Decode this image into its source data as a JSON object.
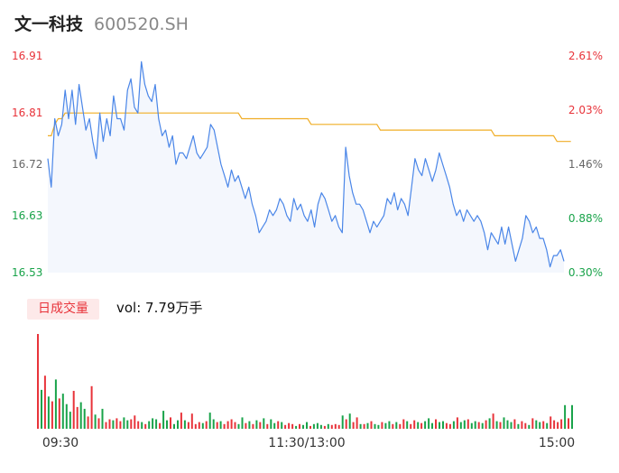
{
  "header": {
    "name": "文一科技",
    "code": "600520.SH"
  },
  "volume": {
    "badge": "日成交量",
    "label": "vol: 7.79万手"
  },
  "colors": {
    "up": "#e8333a",
    "down": "#19a34a",
    "price_line": "#4a86e8",
    "avg_line": "#f0ad25",
    "area": "#f4f7fd"
  },
  "chart_data": [
    {
      "type": "line",
      "title": "",
      "y_labels_left": [
        "16.91",
        "16.81",
        "16.72",
        "16.63",
        "16.53"
      ],
      "y_labels_right": [
        "2.61%",
        "2.03%",
        "1.46%",
        "0.88%",
        "0.30%"
      ],
      "x_labels": [
        "09:30",
        "11:30/13:00",
        "15:00"
      ],
      "ylim": [
        16.53,
        16.91
      ],
      "series": [
        {
          "key": "price",
          "values": [
            16.73,
            16.68,
            16.8,
            16.77,
            16.79,
            16.85,
            16.8,
            16.85,
            16.79,
            16.86,
            16.82,
            16.78,
            16.8,
            16.76,
            16.73,
            16.81,
            16.76,
            16.8,
            16.77,
            16.84,
            16.8,
            16.8,
            16.78,
            16.85,
            16.87,
            16.82,
            16.81,
            16.9,
            16.86,
            16.84,
            16.83,
            16.86,
            16.8,
            16.77,
            16.78,
            16.75,
            16.77,
            16.72,
            16.74,
            16.74,
            16.73,
            16.75,
            16.77,
            16.74,
            16.73,
            16.74,
            16.75,
            16.79,
            16.78,
            16.75,
            16.72,
            16.7,
            16.68,
            16.71,
            16.69,
            16.7,
            16.68,
            16.66,
            16.68,
            16.65,
            16.63,
            16.6,
            16.61,
            16.62,
            16.64,
            16.63,
            16.64,
            16.66,
            16.65,
            16.63,
            16.62,
            16.66,
            16.64,
            16.65,
            16.63,
            16.62,
            16.64,
            16.61,
            16.65,
            16.67,
            16.66,
            16.64,
            16.62,
            16.63,
            16.61,
            16.6,
            16.75,
            16.7,
            16.67,
            16.65,
            16.65,
            16.64,
            16.62,
            16.6,
            16.62,
            16.61,
            16.62,
            16.63,
            16.66,
            16.65,
            16.67,
            16.64,
            16.66,
            16.65,
            16.63,
            16.68,
            16.73,
            16.71,
            16.7,
            16.73,
            16.71,
            16.69,
            16.71,
            16.74,
            16.72,
            16.7,
            16.68,
            16.65,
            16.63,
            16.64,
            16.62,
            16.64,
            16.63,
            16.62,
            16.63,
            16.62,
            16.6,
            16.57,
            16.6,
            16.59,
            16.58,
            16.61,
            16.58,
            16.61,
            16.58,
            16.55,
            16.57,
            16.59,
            16.63,
            16.62,
            16.6,
            16.61,
            16.59,
            16.59,
            16.57,
            16.54,
            16.56,
            16.56,
            16.57,
            16.55
          ],
          "color": "#4a86e8"
        },
        {
          "key": "average",
          "values": [
            16.77,
            16.77,
            16.79,
            16.8,
            16.8,
            16.81,
            16.81,
            16.81,
            16.81,
            16.81,
            16.81,
            16.81,
            16.81,
            16.81,
            16.81,
            16.81,
            16.81,
            16.81,
            16.81,
            16.81,
            16.81,
            16.81,
            16.81,
            16.81,
            16.81,
            16.81,
            16.81,
            16.81,
            16.81,
            16.81,
            16.81,
            16.81,
            16.81,
            16.81,
            16.81,
            16.81,
            16.81,
            16.81,
            16.81,
            16.81,
            16.81,
            16.81,
            16.81,
            16.81,
            16.81,
            16.81,
            16.81,
            16.81,
            16.81,
            16.81,
            16.81,
            16.81,
            16.81,
            16.81,
            16.81,
            16.81,
            16.8,
            16.8,
            16.8,
            16.8,
            16.8,
            16.8,
            16.8,
            16.8,
            16.8,
            16.8,
            16.8,
            16.8,
            16.8,
            16.8,
            16.8,
            16.8,
            16.8,
            16.8,
            16.8,
            16.8,
            16.79,
            16.79,
            16.79,
            16.79,
            16.79,
            16.79,
            16.79,
            16.79,
            16.79,
            16.79,
            16.79,
            16.79,
            16.79,
            16.79,
            16.79,
            16.79,
            16.79,
            16.79,
            16.79,
            16.79,
            16.78,
            16.78,
            16.78,
            16.78,
            16.78,
            16.78,
            16.78,
            16.78,
            16.78,
            16.78,
            16.78,
            16.78,
            16.78,
            16.78,
            16.78,
            16.78,
            16.78,
            16.78,
            16.78,
            16.78,
            16.78,
            16.78,
            16.78,
            16.78,
            16.78,
            16.78,
            16.78,
            16.78,
            16.78,
            16.78,
            16.78,
            16.78,
            16.78,
            16.77,
            16.77,
            16.77,
            16.77,
            16.77,
            16.77,
            16.77,
            16.77,
            16.77,
            16.77,
            16.77,
            16.77,
            16.77,
            16.77,
            16.77,
            16.77,
            16.77,
            16.77,
            16.76,
            16.76,
            16.76,
            16.76,
            16.76
          ],
          "color": "#f0ad25"
        }
      ]
    },
    {
      "type": "bar",
      "title": "",
      "ylim": [
        0,
        1
      ],
      "volumes": [
        1.0,
        0.41,
        0.56,
        0.34,
        0.29,
        0.52,
        0.32,
        0.37,
        0.26,
        0.18,
        0.4,
        0.23,
        0.28,
        0.21,
        0.13,
        0.45,
        0.15,
        0.11,
        0.21,
        0.07,
        0.1,
        0.09,
        0.11,
        0.08,
        0.12,
        0.09,
        0.1,
        0.14,
        0.08,
        0.07,
        0.05,
        0.08,
        0.11,
        0.1,
        0.06,
        0.19,
        0.09,
        0.12,
        0.05,
        0.09,
        0.17,
        0.09,
        0.07,
        0.16,
        0.05,
        0.07,
        0.06,
        0.08,
        0.17,
        0.1,
        0.07,
        0.08,
        0.05,
        0.08,
        0.1,
        0.07,
        0.05,
        0.12,
        0.06,
        0.08,
        0.05,
        0.09,
        0.07,
        0.11,
        0.05,
        0.1,
        0.06,
        0.08,
        0.07,
        0.04,
        0.06,
        0.05,
        0.03,
        0.05,
        0.04,
        0.07,
        0.03,
        0.05,
        0.06,
        0.04,
        0.03,
        0.05,
        0.04,
        0.05,
        0.04,
        0.14,
        0.1,
        0.16,
        0.07,
        0.12,
        0.05,
        0.05,
        0.06,
        0.08,
        0.05,
        0.04,
        0.07,
        0.06,
        0.08,
        0.05,
        0.07,
        0.05,
        0.1,
        0.08,
        0.05,
        0.09,
        0.07,
        0.06,
        0.08,
        0.11,
        0.06,
        0.1,
        0.07,
        0.08,
        0.06,
        0.05,
        0.08,
        0.12,
        0.07,
        0.09,
        0.1,
        0.06,
        0.08,
        0.07,
        0.06,
        0.09,
        0.11,
        0.16,
        0.08,
        0.07,
        0.12,
        0.09,
        0.07,
        0.1,
        0.05,
        0.08,
        0.06,
        0.04,
        0.11,
        0.09,
        0.07,
        0.08,
        0.06,
        0.13,
        0.09,
        0.07,
        0.1,
        0.25,
        0.11,
        0.25
      ],
      "up_flags": [
        1,
        0,
        1,
        0,
        1,
        0,
        1,
        0,
        0,
        0,
        1,
        1,
        0,
        0,
        1,
        1,
        0,
        1,
        0,
        1,
        1,
        0,
        1,
        1,
        0,
        0,
        1,
        1,
        1,
        0,
        1,
        0,
        0,
        0,
        1,
        0,
        0,
        1,
        0,
        0,
        1,
        0,
        1,
        1,
        1,
        1,
        0,
        1,
        0,
        0,
        1,
        0,
        1,
        1,
        1,
        1,
        0,
        0,
        1,
        0,
        1,
        0,
        1,
        0,
        1,
        0,
        0,
        1,
        0,
        1,
        1,
        1,
        0,
        1,
        0,
        0,
        1,
        0,
        0,
        0,
        1,
        0,
        1,
        1,
        1,
        0,
        1,
        0,
        1,
        1,
        0,
        1,
        0,
        1,
        0,
        0,
        1,
        0,
        0,
        1,
        0,
        1,
        1,
        0,
        1,
        1,
        0,
        1,
        0,
        0,
        0,
        1,
        0,
        0,
        1,
        1,
        0,
        1,
        0,
        0,
        1,
        0,
        0,
        1,
        0,
        1,
        0,
        1,
        0,
        1,
        0,
        0,
        0,
        1,
        0,
        1,
        1,
        0,
        1,
        0,
        0,
        1,
        0,
        1,
        1,
        1,
        1,
        0,
        1,
        0
      ]
    }
  ]
}
